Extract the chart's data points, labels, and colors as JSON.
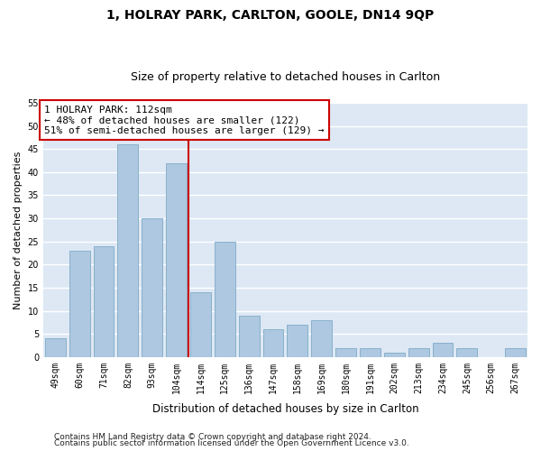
{
  "title": "1, HOLRAY PARK, CARLTON, GOOLE, DN14 9QP",
  "subtitle": "Size of property relative to detached houses in Carlton",
  "xlabel": "Distribution of detached houses by size in Carlton",
  "ylabel": "Number of detached properties",
  "categories": [
    "49sqm",
    "60sqm",
    "71sqm",
    "82sqm",
    "93sqm",
    "104sqm",
    "114sqm",
    "125sqm",
    "136sqm",
    "147sqm",
    "158sqm",
    "169sqm",
    "180sqm",
    "191sqm",
    "202sqm",
    "213sqm",
    "234sqm",
    "245sqm",
    "256sqm",
    "267sqm"
  ],
  "values": [
    4,
    23,
    24,
    46,
    30,
    42,
    14,
    25,
    9,
    6,
    7,
    8,
    2,
    2,
    1,
    2,
    3,
    2,
    0,
    2
  ],
  "bar_color": "#adc8e0",
  "bar_edge_color": "#8ab0cc",
  "annotation_text": "1 HOLRAY PARK: 112sqm\n← 48% of detached houses are smaller (122)\n51% of semi-detached houses are larger (129) →",
  "annotation_box_color": "#ffffff",
  "annotation_box_edge": "#cc0000",
  "vline_color": "#cc0000",
  "ylim": [
    0,
    55
  ],
  "yticks": [
    0,
    5,
    10,
    15,
    20,
    25,
    30,
    35,
    40,
    45,
    50,
    55
  ],
  "background_color": "#dde8f4",
  "grid_color": "#ffffff",
  "footer1": "Contains HM Land Registry data © Crown copyright and database right 2024.",
  "footer2": "Contains public sector information licensed under the Open Government Licence v3.0.",
  "title_fontsize": 10,
  "subtitle_fontsize": 9,
  "xlabel_fontsize": 8.5,
  "ylabel_fontsize": 8,
  "annot_fontsize": 8,
  "tick_fontsize": 7,
  "footer_fontsize": 6.5
}
